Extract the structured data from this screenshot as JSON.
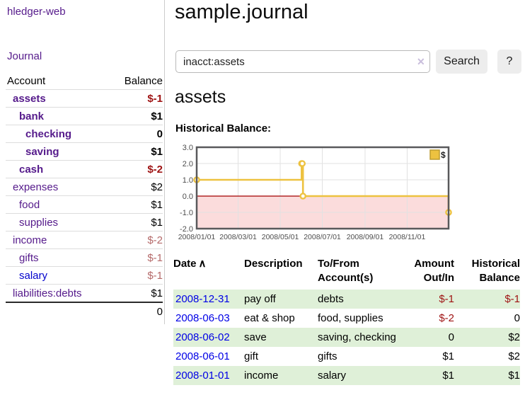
{
  "app": {
    "brand": "hledger-web",
    "nav_journal": "Journal"
  },
  "sidebar": {
    "accounts_header": {
      "account": "Account",
      "balance": "Balance"
    },
    "accounts": [
      {
        "name": "assets",
        "balance": "$-1",
        "indent": 1,
        "bold": true,
        "balance_class": "neg-strong",
        "blue": false
      },
      {
        "name": "bank",
        "balance": "$1",
        "indent": 2,
        "bold": true,
        "balance_class": "",
        "blue": false
      },
      {
        "name": "checking",
        "balance": "0",
        "indent": 3,
        "bold": true,
        "balance_class": "",
        "blue": false
      },
      {
        "name": "saving",
        "balance": "$1",
        "indent": 3,
        "bold": true,
        "balance_class": "",
        "blue": false
      },
      {
        "name": "cash",
        "balance": "$-2",
        "indent": 2,
        "bold": true,
        "balance_class": "neg-strong",
        "blue": false
      },
      {
        "name": "expenses",
        "balance": "$2",
        "indent": 1,
        "bold": false,
        "balance_class": "",
        "blue": false
      },
      {
        "name": "food",
        "balance": "$1",
        "indent": 2,
        "bold": false,
        "balance_class": "",
        "blue": false
      },
      {
        "name": "supplies",
        "balance": "$1",
        "indent": 2,
        "bold": false,
        "balance_class": "",
        "blue": false
      },
      {
        "name": "income",
        "balance": "$-2",
        "indent": 1,
        "bold": false,
        "balance_class": "neg-muted",
        "blue": false
      },
      {
        "name": "gifts",
        "balance": "$-1",
        "indent": 2,
        "bold": false,
        "balance_class": "neg-muted",
        "blue": false
      },
      {
        "name": "salary",
        "balance": "$-1",
        "indent": 2,
        "bold": false,
        "balance_class": "neg-muted",
        "blue": true
      },
      {
        "name": "liabilities:debts",
        "balance": "$1",
        "indent": 1,
        "bold": false,
        "balance_class": "",
        "blue": false
      }
    ],
    "total": "0"
  },
  "header": {
    "title": "sample.journal"
  },
  "search": {
    "value": "inacct:assets",
    "placeholder": "",
    "clear_icon": "✕",
    "button": "Search",
    "help": "?"
  },
  "account_page": {
    "title": "assets",
    "chart_label": "Historical Balance:"
  },
  "chart_data": {
    "type": "line",
    "step": true,
    "series": [
      {
        "name": "$",
        "color": "#edc240",
        "points": [
          [
            "2008-01-01",
            1
          ],
          [
            "2008-06-01",
            2
          ],
          [
            "2008-06-02",
            2
          ],
          [
            "2008-06-03",
            0
          ],
          [
            "2008-12-31",
            -1
          ]
        ]
      }
    ],
    "x_range_days": [
      "2008-01-01",
      "2008-12-31"
    ],
    "xticks": [
      "2008/01/01",
      "2008/03/01",
      "2008/05/01",
      "2008/07/01",
      "2008/09/01",
      "2008/11/01"
    ],
    "yticks": [
      "3.0",
      "2.0",
      "1.0",
      "0.0",
      "-1.0",
      "-2.0"
    ],
    "ylim": [
      -2,
      3
    ],
    "grid": true,
    "negative_region_color": "#fbdcdc",
    "zero_line_color": "#a40000",
    "legend": {
      "label": "$",
      "position": "top-right"
    }
  },
  "register": {
    "columns": {
      "date": "Date",
      "sort_icon": "∧",
      "description": "Description",
      "account_line1": "To/From",
      "account_line2": "Account(s)",
      "amount_line1": "Amount",
      "amount_line2": "Out/In",
      "balance_line1": "Historical",
      "balance_line2": "Balance"
    },
    "rows": [
      {
        "date": "2008-12-31",
        "description": "pay off",
        "accounts": "debts",
        "amount": "$-1",
        "amount_neg": true,
        "balance": "$-1",
        "balance_neg": true
      },
      {
        "date": "2008-06-03",
        "description": "eat & shop",
        "accounts": "food, supplies",
        "amount": "$-2",
        "amount_neg": true,
        "balance": "0",
        "balance_neg": false
      },
      {
        "date": "2008-06-02",
        "description": "save",
        "accounts": "saving, checking",
        "amount": "0",
        "amount_neg": false,
        "balance": "$2",
        "balance_neg": false
      },
      {
        "date": "2008-06-01",
        "description": "gift",
        "accounts": "gifts",
        "amount": "$1",
        "amount_neg": false,
        "balance": "$2",
        "balance_neg": false
      },
      {
        "date": "2008-01-01",
        "description": "income",
        "accounts": "salary",
        "amount": "$1",
        "amount_neg": false,
        "balance": "$1",
        "balance_neg": false
      }
    ]
  },
  "colors": {
    "link_purple": "#551a8b",
    "link_blue": "#0000e6",
    "negative_strong": "#9e1212",
    "negative_muted": "#b56a6a",
    "stripe_green": "#dff0d8",
    "chart_line": "#edc240",
    "chart_negative_fill": "#fbdcdc",
    "chart_zero_line": "#a40000"
  }
}
